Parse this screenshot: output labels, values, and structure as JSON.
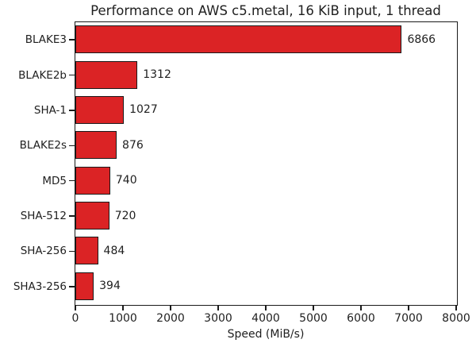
{
  "chart_data": {
    "type": "bar",
    "orientation": "horizontal",
    "title": "Performance on AWS c5.metal, 16 KiB input, 1 thread",
    "xlabel": "Speed (MiB/s)",
    "ylabel": "",
    "categories": [
      "BLAKE3",
      "BLAKE2b",
      "SHA-1",
      "BLAKE2s",
      "MD5",
      "SHA-512",
      "SHA-256",
      "SHA3-256"
    ],
    "values": [
      6866,
      1312,
      1027,
      876,
      740,
      720,
      484,
      394
    ],
    "value_labels": [
      "6866",
      "1312",
      "1027",
      "876",
      "740",
      "720",
      "484",
      "394"
    ],
    "xlim": [
      0,
      8000
    ],
    "xticks": [
      0,
      1000,
      2000,
      3000,
      4000,
      5000,
      6000,
      7000,
      8000
    ],
    "grid": false,
    "legend": "none",
    "bar_color": "#db2325",
    "bar_edge_color": "#1a1a1a",
    "text_color": "#1f1f1f"
  }
}
